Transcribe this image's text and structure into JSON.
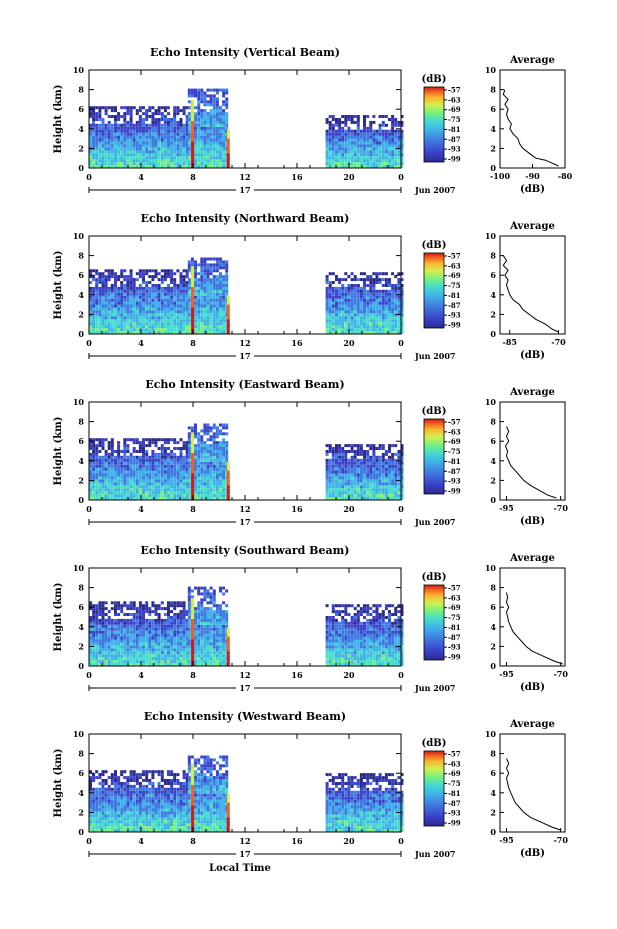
{
  "chart_data": [
    {
      "type": "heatmap",
      "title": "Echo Intensity (Vertical Beam)",
      "ylabel": "Height (km)",
      "ylim": [
        0,
        10
      ],
      "yticks": [
        "0",
        "2",
        "4",
        "6",
        "8",
        "10"
      ],
      "xlim": [
        0,
        24
      ],
      "xticks": [
        "0",
        "4",
        "8",
        "12",
        "16",
        "20",
        "0"
      ],
      "date_label": "17",
      "month_label": "Jun 2007",
      "colorbar": {
        "unit": "(dB)",
        "ticks": [
          "-57",
          "-63",
          "-69",
          "-75",
          "-81",
          "-87",
          "-93",
          "-99"
        ]
      },
      "data_segments": [
        {
          "x_start": 0,
          "x_end": 7.6,
          "top_km": 6.0
        },
        {
          "x_start": 7.6,
          "x_end": 10.7,
          "top_km": 7.8
        },
        {
          "x_start": 18.2,
          "x_end": 24,
          "top_km": 5.2
        }
      ],
      "average_profile": {
        "title": "Average",
        "xlabel": "(dB)",
        "xticks": [
          "-100",
          "-90",
          "-80"
        ],
        "xlim": [
          -100,
          -80
        ],
        "ylim": [
          0,
          10
        ],
        "yticks": [
          "0",
          "2",
          "4",
          "6",
          "8",
          "10"
        ],
        "height_km": [
          0.2,
          0.5,
          0.8,
          1.0,
          1.5,
          2.0,
          2.5,
          3.0,
          3.5,
          4.0,
          4.5,
          5.0,
          5.5,
          6.0,
          6.5,
          7.0,
          7.5,
          8.0
        ],
        "db": [
          -82,
          -84,
          -86,
          -89,
          -91,
          -93,
          -94,
          -94.5,
          -96,
          -97,
          -96.5,
          -97.5,
          -98,
          -97.5,
          -98.5,
          -97.5,
          -99,
          -98.5
        ]
      }
    },
    {
      "type": "heatmap",
      "title": "Echo Intensity (Northward Beam)",
      "ylabel": "Height (km)",
      "ylim": [
        0,
        10
      ],
      "yticks": [
        "0",
        "2",
        "4",
        "6",
        "8",
        "10"
      ],
      "xlim": [
        0,
        24
      ],
      "xticks": [
        "0",
        "4",
        "8",
        "12",
        "16",
        "20",
        "0"
      ],
      "date_label": "17",
      "month_label": "Jun 2007",
      "colorbar": {
        "unit": "(dB)",
        "ticks": [
          "-57",
          "-63",
          "-69",
          "-75",
          "-81",
          "-87",
          "-93",
          "-99"
        ]
      },
      "data_segments": [
        {
          "x_start": 0,
          "x_end": 7.6,
          "top_km": 6.5
        },
        {
          "x_start": 7.6,
          "x_end": 10.7,
          "top_km": 7.5
        },
        {
          "x_start": 18.2,
          "x_end": 24,
          "top_km": 6.2
        }
      ],
      "average_profile": {
        "title": "Average",
        "xlabel": "(dB)",
        "xticks": [
          "-85",
          "-70"
        ],
        "xlim": [
          -88,
          -68
        ],
        "ylim": [
          0,
          10
        ],
        "yticks": [
          "0",
          "2",
          "4",
          "6",
          "8",
          "10"
        ],
        "height_km": [
          0.2,
          0.5,
          1.0,
          1.5,
          2.0,
          2.5,
          3.0,
          3.5,
          4.0,
          4.5,
          5.0,
          5.5,
          6.0,
          6.5,
          7.0,
          7.5,
          8.0
        ],
        "db": [
          -70,
          -72,
          -74,
          -77,
          -79,
          -81,
          -82,
          -84,
          -85,
          -85.5,
          -86,
          -85.5,
          -86.5,
          -85.5,
          -87,
          -86,
          -87
        ]
      }
    },
    {
      "type": "heatmap",
      "title": "Echo Intensity (Eastward Beam)",
      "ylabel": "Height (km)",
      "ylim": [
        0,
        10
      ],
      "yticks": [
        "0",
        "2",
        "4",
        "6",
        "8",
        "10"
      ],
      "xlim": [
        0,
        24
      ],
      "xticks": [
        "0",
        "4",
        "8",
        "12",
        "16",
        "20",
        "0"
      ],
      "date_label": "17",
      "month_label": "Jun 2007",
      "colorbar": {
        "unit": "(dB)",
        "ticks": [
          "-57",
          "-63",
          "-69",
          "-75",
          "-81",
          "-87",
          "-93",
          "-99"
        ]
      },
      "data_segments": [
        {
          "x_start": 0,
          "x_end": 7.6,
          "top_km": 6.2
        },
        {
          "x_start": 7.6,
          "x_end": 10.7,
          "top_km": 7.6
        },
        {
          "x_start": 18.2,
          "x_end": 24,
          "top_km": 5.5
        }
      ],
      "average_profile": {
        "title": "Average",
        "xlabel": "(dB)",
        "xticks": [
          "-95",
          "-70"
        ],
        "xlim": [
          -98,
          -68
        ],
        "ylim": [
          0,
          10
        ],
        "yticks": [
          "0",
          "2",
          "4",
          "6",
          "8",
          "10"
        ],
        "height_km": [
          0.2,
          0.5,
          1.0,
          1.5,
          2.0,
          2.5,
          3.0,
          3.5,
          4.0,
          4.5,
          5.0,
          5.5,
          6.0,
          6.5,
          7.0,
          7.5
        ],
        "db": [
          -72,
          -76,
          -80,
          -84,
          -87,
          -89,
          -91,
          -93,
          -94,
          -95,
          -94.5,
          -95.5,
          -94,
          -95,
          -94,
          -95
        ]
      }
    },
    {
      "type": "heatmap",
      "title": "Echo Intensity (Southward Beam)",
      "ylabel": "Height (km)",
      "ylim": [
        0,
        10
      ],
      "yticks": [
        "0",
        "2",
        "4",
        "6",
        "8",
        "10"
      ],
      "xlim": [
        0,
        24
      ],
      "xticks": [
        "0",
        "4",
        "8",
        "12",
        "16",
        "20",
        "0"
      ],
      "date_label": "17",
      "month_label": "Jun 2007",
      "colorbar": {
        "unit": "(dB)",
        "ticks": [
          "-57",
          "-63",
          "-69",
          "-75",
          "-81",
          "-87",
          "-93",
          "-99"
        ]
      },
      "data_segments": [
        {
          "x_start": 0,
          "x_end": 7.6,
          "top_km": 6.3
        },
        {
          "x_start": 7.6,
          "x_end": 10.7,
          "top_km": 7.8
        },
        {
          "x_start": 18.2,
          "x_end": 24,
          "top_km": 6.0
        }
      ],
      "average_profile": {
        "title": "Average",
        "xlabel": "(dB)",
        "xticks": [
          "-95",
          "-70"
        ],
        "xlim": [
          -98,
          -68
        ],
        "ylim": [
          0,
          10
        ],
        "yticks": [
          "0",
          "2",
          "4",
          "6",
          "8",
          "10"
        ],
        "height_km": [
          0.2,
          0.5,
          1.0,
          1.5,
          2.0,
          2.5,
          3.0,
          3.5,
          4.0,
          4.5,
          5.0,
          5.5,
          6.0,
          6.5,
          7.0,
          7.5
        ],
        "db": [
          -69,
          -73,
          -78,
          -83,
          -86,
          -88,
          -90,
          -92,
          -93,
          -94,
          -94.5,
          -95,
          -94,
          -95,
          -94.5,
          -95
        ]
      }
    },
    {
      "type": "heatmap",
      "title": "Echo Intensity (Westward Beam)",
      "ylabel": "Height (km)",
      "ylim": [
        0,
        10
      ],
      "yticks": [
        "0",
        "2",
        "4",
        "6",
        "8",
        "10"
      ],
      "xlim": [
        0,
        24
      ],
      "xticks": [
        "0",
        "4",
        "8",
        "12",
        "16",
        "20",
        "0"
      ],
      "date_label": "17",
      "month_label": "Jun 2007",
      "xlabel": "Local Time",
      "colorbar": {
        "unit": "(dB)",
        "ticks": [
          "-57",
          "-63",
          "-69",
          "-75",
          "-81",
          "-87",
          "-93",
          "-99"
        ]
      },
      "data_segments": [
        {
          "x_start": 0,
          "x_end": 7.6,
          "top_km": 6.0
        },
        {
          "x_start": 7.6,
          "x_end": 10.7,
          "top_km": 7.6
        },
        {
          "x_start": 18.2,
          "x_end": 24,
          "top_km": 5.8
        }
      ],
      "average_profile": {
        "title": "Average",
        "xlabel": "(dB)",
        "xticks": [
          "-95",
          "-70"
        ],
        "xlim": [
          -98,
          -68
        ],
        "ylim": [
          0,
          10
        ],
        "yticks": [
          "0",
          "2",
          "4",
          "6",
          "8",
          "10"
        ],
        "height_km": [
          0.2,
          0.5,
          1.0,
          1.5,
          2.0,
          2.5,
          3.0,
          3.5,
          4.0,
          4.5,
          5.0,
          5.5,
          6.0,
          6.5,
          7.0,
          7.5
        ],
        "db": [
          -70,
          -74,
          -79,
          -84,
          -87,
          -89,
          -91,
          -92,
          -93,
          -94,
          -94.5,
          -95,
          -94,
          -95,
          -94,
          -95
        ]
      }
    }
  ],
  "colors": {
    "colormap": [
      "#2b2b8c",
      "#3a40c8",
      "#3f78e0",
      "#3fb0e8",
      "#44dccc",
      "#7cf07a",
      "#d4f050",
      "#f8b830",
      "#f06020",
      "#d01818"
    ]
  }
}
